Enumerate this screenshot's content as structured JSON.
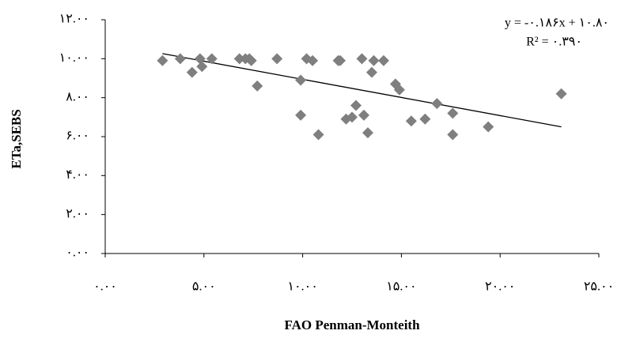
{
  "chart_data": {
    "type": "scatter",
    "x_label": "FAO Penman-Monteith",
    "y_label": "ETa,SEBS",
    "color": "#7f7f7f",
    "x": [
      2.9,
      3.8,
      4.4,
      4.8,
      4.9,
      5.4,
      6.8,
      7.1,
      7.3,
      7.4,
      7.7,
      8.7,
      9.9,
      9.9,
      10.2,
      10.5,
      10.8,
      11.8,
      11.9,
      12.2,
      12.5,
      12.7,
      13.0,
      13.1,
      13.3,
      13.5,
      13.6,
      14.1,
      14.7,
      14.9,
      15.5,
      16.2,
      16.8,
      17.6,
      17.6,
      19.4,
      23.1
    ],
    "values": [
      9.9,
      10.0,
      9.3,
      10.0,
      9.6,
      10.0,
      10.0,
      10.0,
      10.0,
      9.9,
      8.6,
      10.0,
      8.9,
      7.1,
      10.0,
      9.9,
      6.1,
      9.9,
      9.9,
      6.9,
      7.0,
      7.6,
      10.0,
      7.1,
      6.2,
      9.3,
      9.9,
      9.9,
      8.7,
      8.4,
      6.8,
      6.9,
      7.7,
      7.2,
      6.1,
      6.5,
      8.2
    ],
    "trendline": {
      "slope": -0.186,
      "intercept": 10.8,
      "equation": "y = -۰.۱۸۶x + ۱۰.۸۰",
      "r2": "R² = ۰.۳۹۰"
    },
    "xlim": [
      0,
      25
    ],
    "ylim": [
      0,
      12
    ],
    "xticks": [
      {
        "value": 0,
        "label": "۰.۰۰"
      },
      {
        "value": 5,
        "label": "۵.۰۰"
      },
      {
        "value": 10,
        "label": "۱۰.۰۰"
      },
      {
        "value": 15,
        "label": "۱۵.۰۰"
      },
      {
        "value": 20,
        "label": "۲۰.۰۰"
      },
      {
        "value": 25,
        "label": "۲۵.۰۰"
      }
    ],
    "yticks": [
      {
        "value": 0,
        "label": "۰.۰۰"
      },
      {
        "value": 2,
        "label": "۲.۰۰"
      },
      {
        "value": 4,
        "label": "۴.۰۰"
      },
      {
        "value": 6,
        "label": "۶.۰۰"
      },
      {
        "value": 8,
        "label": "۸.۰۰"
      },
      {
        "value": 10,
        "label": "۱۰.۰۰"
      },
      {
        "value": 12,
        "label": "۱۲.۰۰"
      }
    ],
    "grid": false
  }
}
